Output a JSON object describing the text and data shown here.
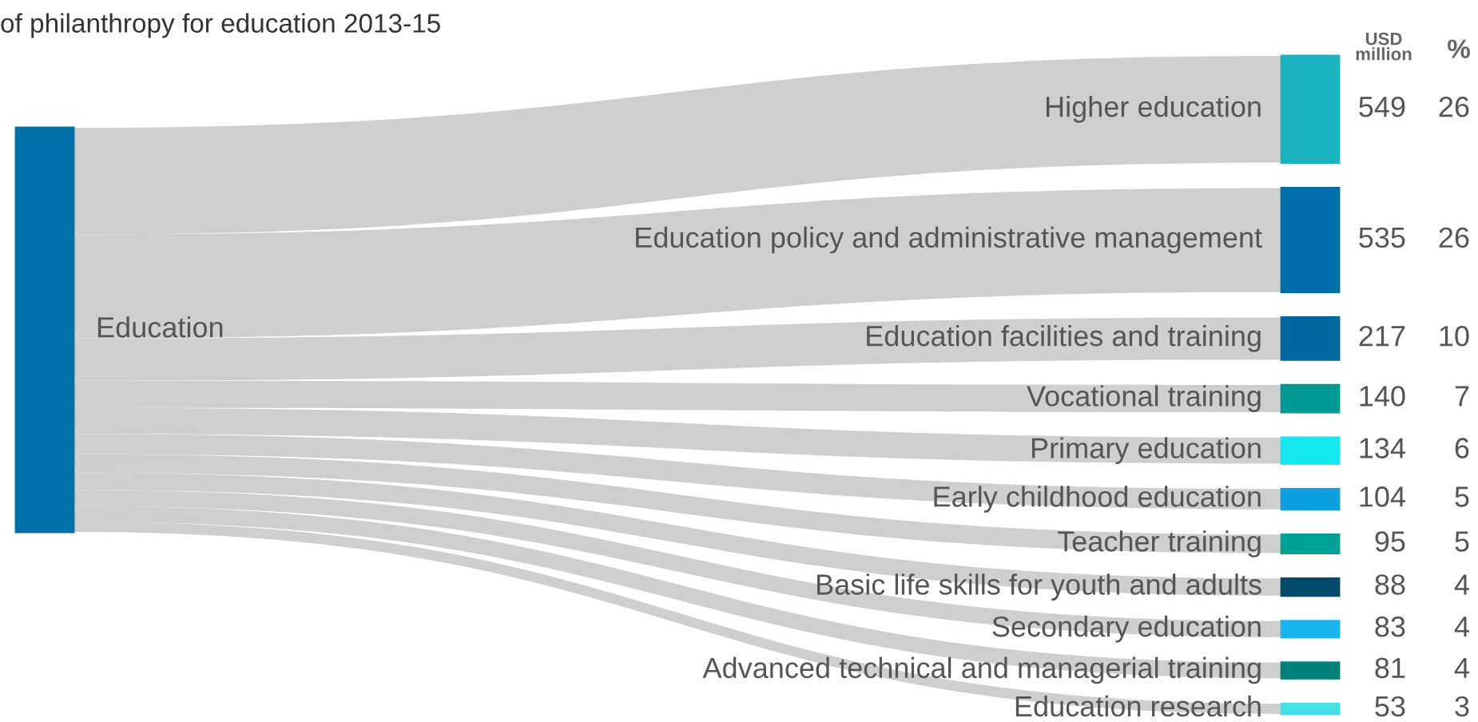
{
  "chart_data": {
    "type": "other",
    "title": "of philanthropy for education 2013-15",
    "annotations": [
      "Education"
    ],
    "data_labels": true,
    "categories": [
      "Higher education",
      "Education policy and administrative management",
      "Education facilities and training",
      "Vocational training",
      "Primary education",
      "Early childhood education",
      "Teacher training",
      "Basic life skills for youth and adults",
      "Secondary education",
      "Advanced technical and managerial training",
      "Education research"
    ],
    "series": [
      {
        "name": "USD\nmillion",
        "values": [
          549,
          535,
          217,
          140,
          134,
          104,
          95,
          88,
          83,
          81,
          53
        ]
      },
      {
        "name": "%",
        "values": [
          26,
          26,
          10,
          7,
          6,
          5,
          5,
          4,
          4,
          4,
          3
        ]
      }
    ],
    "colors": [
      "#1ab3bf",
      "#006ea8",
      "#00689f",
      "#009a95",
      "#14e8f0",
      "#0ca0e0",
      "#00a096",
      "#004a6a",
      "#18b4ee",
      "#00807a",
      "#44e0e8"
    ]
  }
}
